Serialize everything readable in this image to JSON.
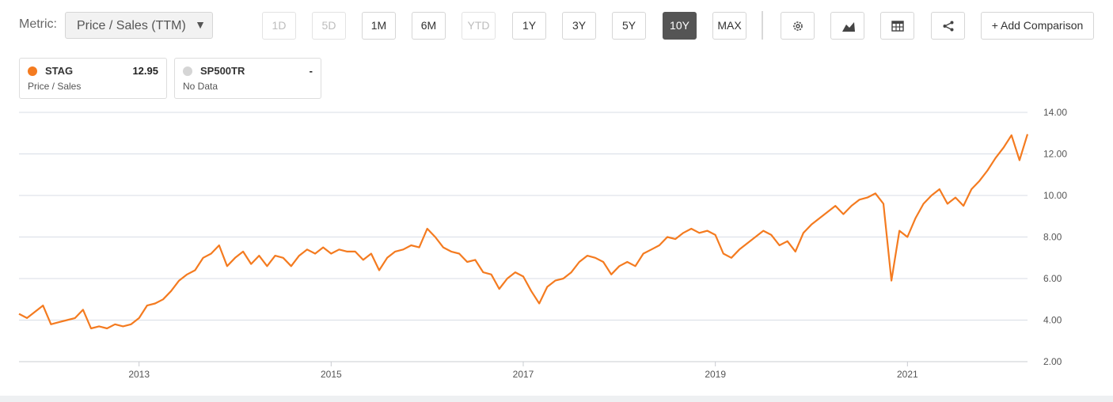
{
  "toolbar": {
    "metric_label": "Metric:",
    "metric_value": "Price / Sales (TTM)",
    "ranges": [
      {
        "label": "1D",
        "state": "disabled"
      },
      {
        "label": "5D",
        "state": "disabled"
      },
      {
        "label": "1M",
        "state": "normal"
      },
      {
        "label": "6M",
        "state": "normal"
      },
      {
        "label": "YTD",
        "state": "disabled"
      },
      {
        "label": "1Y",
        "state": "normal"
      },
      {
        "label": "3Y",
        "state": "normal"
      },
      {
        "label": "5Y",
        "state": "normal"
      },
      {
        "label": "10Y",
        "state": "active"
      },
      {
        "label": "MAX",
        "state": "normal"
      }
    ],
    "tools": [
      "gear-icon",
      "area-chart-icon",
      "table-icon",
      "share-icon"
    ],
    "add_comparison": "+ Add Comparison"
  },
  "legend": [
    {
      "name": "STAG",
      "value": "12.95",
      "sub": "Price / Sales",
      "color": "#f47b20"
    },
    {
      "name": "SP500TR",
      "value": "-",
      "sub": "No Data",
      "color": "#d5d5d5"
    }
  ],
  "chart_data": {
    "type": "line",
    "title": "",
    "xlabel": "",
    "ylabel": "",
    "x_ticks": [
      "2013",
      "2015",
      "2017",
      "2019",
      "2021"
    ],
    "y_ticks": [
      "2.00",
      "4.00",
      "6.00",
      "8.00",
      "10.00",
      "12.00",
      "14.00"
    ],
    "ylim": [
      2,
      14
    ],
    "xlim": [
      "2011-10",
      "2021-10"
    ],
    "grid": true,
    "series": [
      {
        "name": "STAG",
        "color": "#f47b20",
        "points": [
          [
            "2011-10",
            4.3
          ],
          [
            "2011-11",
            4.1
          ],
          [
            "2011-12",
            4.4
          ],
          [
            "2012-01",
            4.7
          ],
          [
            "2012-02",
            3.8
          ],
          [
            "2012-03",
            3.9
          ],
          [
            "2012-04",
            4.0
          ],
          [
            "2012-05",
            4.1
          ],
          [
            "2012-06",
            4.5
          ],
          [
            "2012-07",
            3.6
          ],
          [
            "2012-08",
            3.7
          ],
          [
            "2012-09",
            3.6
          ],
          [
            "2012-10",
            3.8
          ],
          [
            "2012-11",
            3.7
          ],
          [
            "2012-12",
            3.8
          ],
          [
            "2013-01",
            4.1
          ],
          [
            "2013-02",
            4.7
          ],
          [
            "2013-03",
            4.8
          ],
          [
            "2013-04",
            5.0
          ],
          [
            "2013-05",
            5.4
          ],
          [
            "2013-06",
            5.9
          ],
          [
            "2013-07",
            6.2
          ],
          [
            "2013-08",
            6.4
          ],
          [
            "2013-09",
            7.0
          ],
          [
            "2013-10",
            7.2
          ],
          [
            "2013-11",
            7.6
          ],
          [
            "2013-12",
            6.6
          ],
          [
            "2014-01",
            7.0
          ],
          [
            "2014-02",
            7.3
          ],
          [
            "2014-03",
            6.7
          ],
          [
            "2014-04",
            7.1
          ],
          [
            "2014-05",
            6.6
          ],
          [
            "2014-06",
            7.1
          ],
          [
            "2014-07",
            7.0
          ],
          [
            "2014-08",
            6.6
          ],
          [
            "2014-09",
            7.1
          ],
          [
            "2014-10",
            7.4
          ],
          [
            "2014-11",
            7.2
          ],
          [
            "2014-12",
            7.5
          ],
          [
            "2015-01",
            7.2
          ],
          [
            "2015-02",
            7.4
          ],
          [
            "2015-03",
            7.3
          ],
          [
            "2015-04",
            7.3
          ],
          [
            "2015-05",
            6.9
          ],
          [
            "2015-06",
            7.2
          ],
          [
            "2015-07",
            6.4
          ],
          [
            "2015-08",
            7.0
          ],
          [
            "2015-09",
            7.3
          ],
          [
            "2015-10",
            7.4
          ],
          [
            "2015-11",
            7.6
          ],
          [
            "2015-12",
            7.5
          ],
          [
            "2016-01",
            8.4
          ],
          [
            "2016-02",
            8.0
          ],
          [
            "2016-03",
            7.5
          ],
          [
            "2016-04",
            7.3
          ],
          [
            "2016-05",
            7.2
          ],
          [
            "2016-06",
            6.8
          ],
          [
            "2016-07",
            6.9
          ],
          [
            "2016-08",
            6.3
          ],
          [
            "2016-09",
            6.2
          ],
          [
            "2016-10",
            5.5
          ],
          [
            "2016-11",
            6.0
          ],
          [
            "2016-12",
            6.3
          ],
          [
            "2017-01",
            6.1
          ],
          [
            "2017-02",
            5.4
          ],
          [
            "2017-03",
            4.8
          ],
          [
            "2017-04",
            5.6
          ],
          [
            "2017-05",
            5.9
          ],
          [
            "2017-06",
            6.0
          ],
          [
            "2017-07",
            6.3
          ],
          [
            "2017-08",
            6.8
          ],
          [
            "2017-09",
            7.1
          ],
          [
            "2017-10",
            7.0
          ],
          [
            "2017-11",
            6.8
          ],
          [
            "2017-12",
            6.2
          ],
          [
            "2018-01",
            6.6
          ],
          [
            "2018-02",
            6.8
          ],
          [
            "2018-03",
            6.6
          ],
          [
            "2018-04",
            7.2
          ],
          [
            "2018-05",
            7.4
          ],
          [
            "2018-06",
            7.6
          ],
          [
            "2018-07",
            8.0
          ],
          [
            "2018-08",
            7.9
          ],
          [
            "2018-09",
            8.2
          ],
          [
            "2018-10",
            8.4
          ],
          [
            "2018-11",
            8.2
          ],
          [
            "2018-12",
            8.3
          ],
          [
            "2019-01",
            8.1
          ],
          [
            "2019-02",
            7.2
          ],
          [
            "2019-03",
            7.0
          ],
          [
            "2019-04",
            7.4
          ],
          [
            "2019-05",
            7.7
          ],
          [
            "2019-06",
            8.0
          ],
          [
            "2019-07",
            8.3
          ],
          [
            "2019-08",
            8.1
          ],
          [
            "2019-09",
            7.6
          ],
          [
            "2019-10",
            7.8
          ],
          [
            "2019-11",
            7.3
          ],
          [
            "2019-12",
            8.2
          ],
          [
            "2020-01",
            8.6
          ],
          [
            "2020-02",
            8.9
          ],
          [
            "2020-03",
            9.2
          ],
          [
            "2020-04",
            9.5
          ],
          [
            "2020-05",
            9.1
          ],
          [
            "2020-06",
            9.5
          ],
          [
            "2020-07",
            9.8
          ],
          [
            "2020-08",
            9.9
          ],
          [
            "2020-09",
            10.1
          ],
          [
            "2020-10",
            9.6
          ],
          [
            "2020-11",
            5.9
          ],
          [
            "2020-12",
            8.3
          ],
          [
            "2021-01",
            8.0
          ],
          [
            "2021-02",
            8.9
          ],
          [
            "2021-03",
            9.6
          ],
          [
            "2021-04",
            10.0
          ],
          [
            "2021-05",
            10.3
          ],
          [
            "2021-06",
            9.6
          ],
          [
            "2021-07",
            9.9
          ],
          [
            "2021-08",
            9.5
          ],
          [
            "2021-09",
            10.3
          ],
          [
            "2021-10",
            10.7
          ],
          [
            "2021-11",
            11.2
          ],
          [
            "2021-12",
            11.8
          ],
          [
            "2022-01",
            12.3
          ],
          [
            "2022-02",
            12.9
          ],
          [
            "2022-03",
            11.7
          ],
          [
            "2022-04",
            12.95
          ]
        ]
      }
    ]
  }
}
